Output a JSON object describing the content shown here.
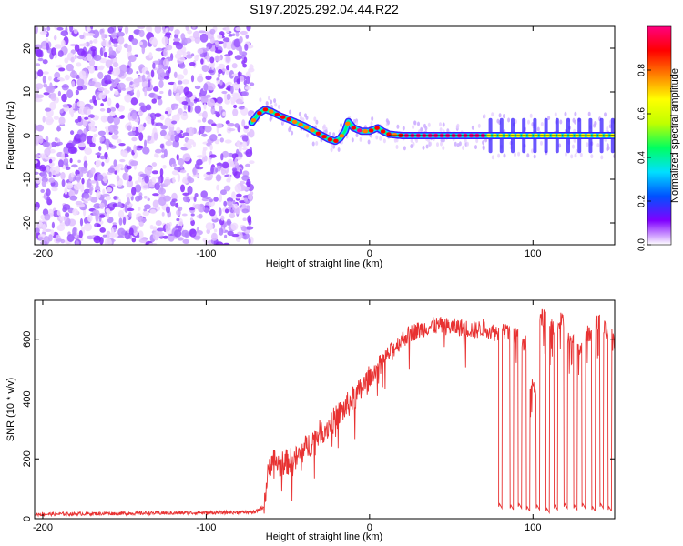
{
  "chart_data": [
    {
      "type": "heatmap",
      "title": "S197.2025.292.04.44.R22",
      "xlabel": "Height of straight line (km)",
      "ylabel": "Frequency (Hz)",
      "xlim": [
        -205,
        150
      ],
      "ylim": [
        -25,
        25
      ],
      "x_ticks": [
        -200,
        -100,
        0,
        100
      ],
      "y_ticks": [
        -20,
        -10,
        0,
        10,
        20
      ],
      "noise_region_x": [
        -205,
        -72
      ],
      "tone_x_range": [
        -72,
        150
      ],
      "tone_track": [
        {
          "x": -72,
          "f": 3.0
        },
        {
          "x": -68,
          "f": 5.0
        },
        {
          "x": -64,
          "f": 6.0
        },
        {
          "x": -60,
          "f": 5.5
        },
        {
          "x": -55,
          "f": 4.5
        },
        {
          "x": -50,
          "f": 3.8
        },
        {
          "x": -45,
          "f": 3.0
        },
        {
          "x": -40,
          "f": 2.2
        },
        {
          "x": -35,
          "f": 1.2
        },
        {
          "x": -30,
          "f": 0.2
        },
        {
          "x": -25,
          "f": -0.8
        },
        {
          "x": -21,
          "f": -1.3
        },
        {
          "x": -18,
          "f": -0.6
        },
        {
          "x": -15,
          "f": 1.0
        },
        {
          "x": -13,
          "f": 3.2
        },
        {
          "x": -10,
          "f": 1.8
        },
        {
          "x": -5,
          "f": 1.0
        },
        {
          "x": 0,
          "f": 1.0
        },
        {
          "x": 5,
          "f": 1.8
        },
        {
          "x": 8,
          "f": 1.0
        },
        {
          "x": 12,
          "f": 0.3
        },
        {
          "x": 20,
          "f": 0.0
        },
        {
          "x": 40,
          "f": 0.0
        },
        {
          "x": 60,
          "f": 0.0
        },
        {
          "x": 80,
          "f": 0.0
        },
        {
          "x": 100,
          "f": 0.0
        },
        {
          "x": 120,
          "f": 0.0
        },
        {
          "x": 150,
          "f": 0.0
        }
      ],
      "colorbar": {
        "label": "Normalized spectral amplitude",
        "range": [
          0.0,
          1.0
        ],
        "ticks": [
          0.0,
          0.2,
          0.4,
          0.6,
          0.8
        ],
        "tick_labels": [
          "0.0",
          "0.2",
          "0.4",
          "0.6",
          "0.8"
        ],
        "colors": [
          "#ffffff",
          "#8000ff",
          "#0050ff",
          "#00e0ff",
          "#00ff60",
          "#c0ff00",
          "#ffff00",
          "#ff8000",
          "#ff0000",
          "#ff0080"
        ]
      }
    },
    {
      "type": "line",
      "xlabel": "Height of straight line (km)",
      "ylabel": "SNR (10 * v/v)",
      "xlim": [
        -205,
        150
      ],
      "ylim": [
        0,
        730
      ],
      "x_ticks": [
        -200,
        -100,
        0,
        100
      ],
      "y_ticks": [
        0,
        200,
        400,
        600
      ],
      "color": "#e83232",
      "series": [
        {
          "name": "SNR",
          "x": [
            -205,
            -150,
            -100,
            -70,
            -65,
            -62,
            -60,
            -55,
            -50,
            -45,
            -40,
            -35,
            -30,
            -25,
            -20,
            -15,
            -10,
            -5,
            0,
            5,
            10,
            15,
            20,
            25,
            30,
            35,
            40,
            45,
            50,
            55,
            60,
            65,
            70,
            75,
            79
          ],
          "y": [
            15,
            18,
            20,
            22,
            40,
            150,
            200,
            180,
            190,
            200,
            230,
            260,
            290,
            310,
            340,
            370,
            400,
            430,
            470,
            510,
            540,
            570,
            600,
            620,
            630,
            640,
            645,
            645,
            640,
            640,
            635,
            630,
            640,
            625,
            620
          ],
          "dropouts": [
            {
              "x": [
                79,
                81
              ],
              "low": 40,
              "high": 610
            },
            {
              "x": [
                86,
                88
              ],
              "low": 35,
              "high": 650
            },
            {
              "x": [
                91,
                93
              ],
              "low": 40,
              "high": 640
            },
            {
              "x": [
                96,
                98
              ],
              "low": 30,
              "high": 620
            },
            {
              "x": [
                102,
                104
              ],
              "low": 35,
              "high": 470
            },
            {
              "x": [
                108,
                110
              ],
              "low": 25,
              "high": 700
            },
            {
              "x": [
                113,
                115
              ],
              "low": 35,
              "high": 670
            },
            {
              "x": [
                119,
                121
              ],
              "low": 40,
              "high": 690
            },
            {
              "x": [
                125,
                127
              ],
              "low": 35,
              "high": 640
            },
            {
              "x": [
                130,
                132
              ],
              "low": 40,
              "high": 600
            },
            {
              "x": [
                136,
                138
              ],
              "low": 30,
              "high": 650
            },
            {
              "x": [
                141,
                143
              ],
              "low": 40,
              "high": 690
            },
            {
              "x": [
                146,
                148
              ],
              "low": 30,
              "high": 660
            }
          ]
        }
      ]
    }
  ]
}
